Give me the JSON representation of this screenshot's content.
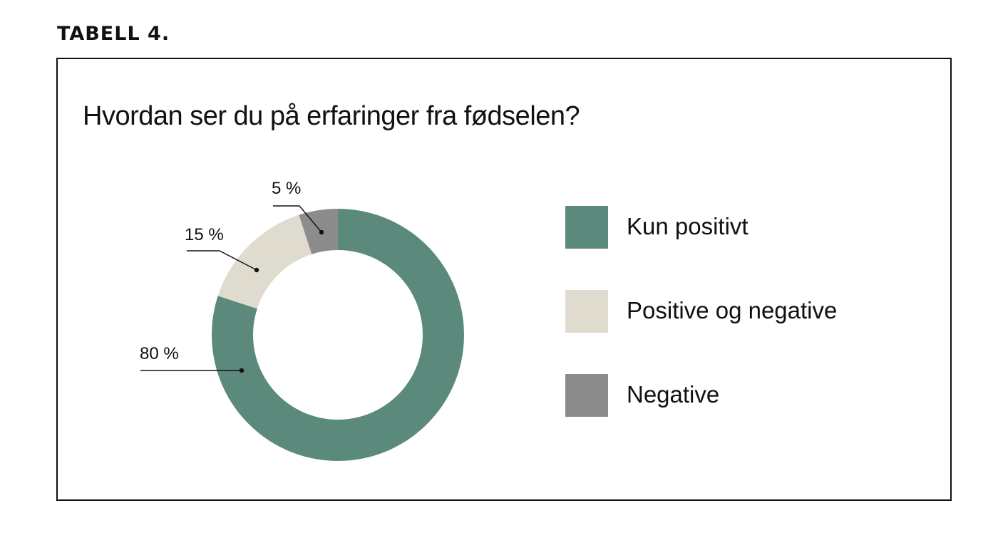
{
  "header": {
    "table_label": "TABELL 4."
  },
  "chart_data": {
    "type": "pie",
    "title": "Hvordan ser du på erfaringer fra fødselen?",
    "slices": [
      {
        "label": "Kun positivt",
        "value": 80,
        "value_label": "80 %",
        "color": "#5b8a7d"
      },
      {
        "label": "Positive og negative",
        "value": 15,
        "value_label": "15 %",
        "color": "#dfdccf"
      },
      {
        "label": "Negative",
        "value": 5,
        "value_label": "5 %",
        "color": "#8c8c8c"
      }
    ],
    "donut": true,
    "start": "top",
    "direction": "clockwise",
    "legend_position": "right"
  }
}
